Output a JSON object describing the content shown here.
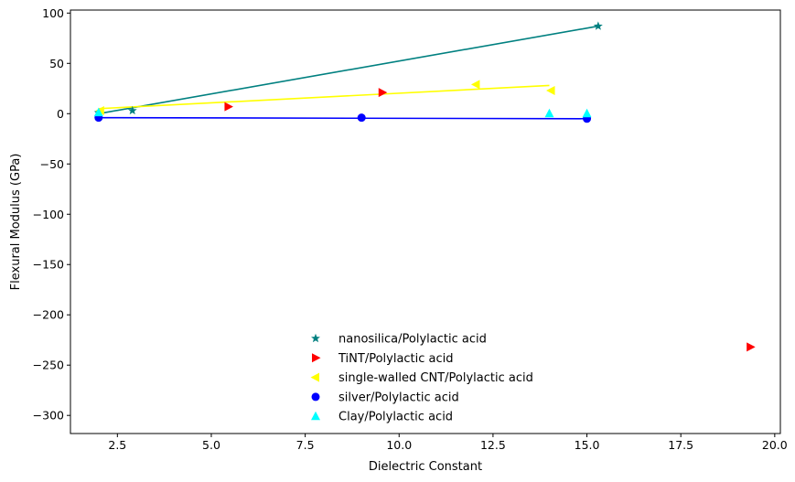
{
  "chart_data": {
    "type": "scatter",
    "title": "",
    "xlabel": "Dielectric Constant",
    "ylabel": "Flexural Modulus (GPa)",
    "xlim": [
      1.25,
      20.15
    ],
    "ylim": [
      -318,
      103
    ],
    "xticks": [
      2.5,
      5.0,
      7.5,
      10.0,
      12.5,
      15.0,
      17.5,
      20.0
    ],
    "xtick_labels": [
      "2.5",
      "5.0",
      "7.5",
      "10.0",
      "12.5",
      "15.0",
      "17.5",
      "20.0"
    ],
    "yticks": [
      100,
      50,
      0,
      -50,
      -100,
      -150,
      -200,
      -250,
      -300
    ],
    "ytick_labels": [
      "100",
      "50",
      "0",
      "−50",
      "−100",
      "−150",
      "−200",
      "−250",
      "−300"
    ],
    "grid": false,
    "legend_position": "lower-center",
    "series": [
      {
        "name": "nanosilica/Polylactic acid",
        "marker": "star",
        "color": "#008080",
        "x": [
          2.0,
          2.9,
          15.3
        ],
        "y": [
          1,
          3,
          87
        ],
        "fit_line": [
          [
            2.0,
            0
          ],
          [
            15.3,
            87
          ]
        ]
      },
      {
        "name": "TiNT/Polylactic acid",
        "marker": "triangle-right",
        "color": "#ff0000",
        "x": [
          5.45,
          9.55,
          19.35
        ],
        "y": [
          7,
          21,
          -232
        ],
        "fit_line": null
      },
      {
        "name": "single-walled CNT/Polylactic acid",
        "marker": "triangle-left",
        "color": "#ffff00",
        "x": [
          2.05,
          12.05,
          14.05
        ],
        "y": [
          3,
          29,
          23
        ],
        "fit_line": [
          [
            2.0,
            5
          ],
          [
            14.0,
            28
          ]
        ]
      },
      {
        "name": "silver/Polylactic acid",
        "marker": "circle",
        "color": "#0000ff",
        "x": [
          2.0,
          9.0,
          15.0
        ],
        "y": [
          -4,
          -4,
          -5
        ],
        "fit_line": [
          [
            2.0,
            -4
          ],
          [
            15.0,
            -5
          ]
        ]
      },
      {
        "name": "Clay/Polylactic acid",
        "marker": "triangle-up",
        "color": "#00ffff",
        "x": [
          2.0,
          14.0,
          15.0
        ],
        "y": [
          1,
          0,
          0
        ],
        "fit_line": null
      }
    ]
  }
}
